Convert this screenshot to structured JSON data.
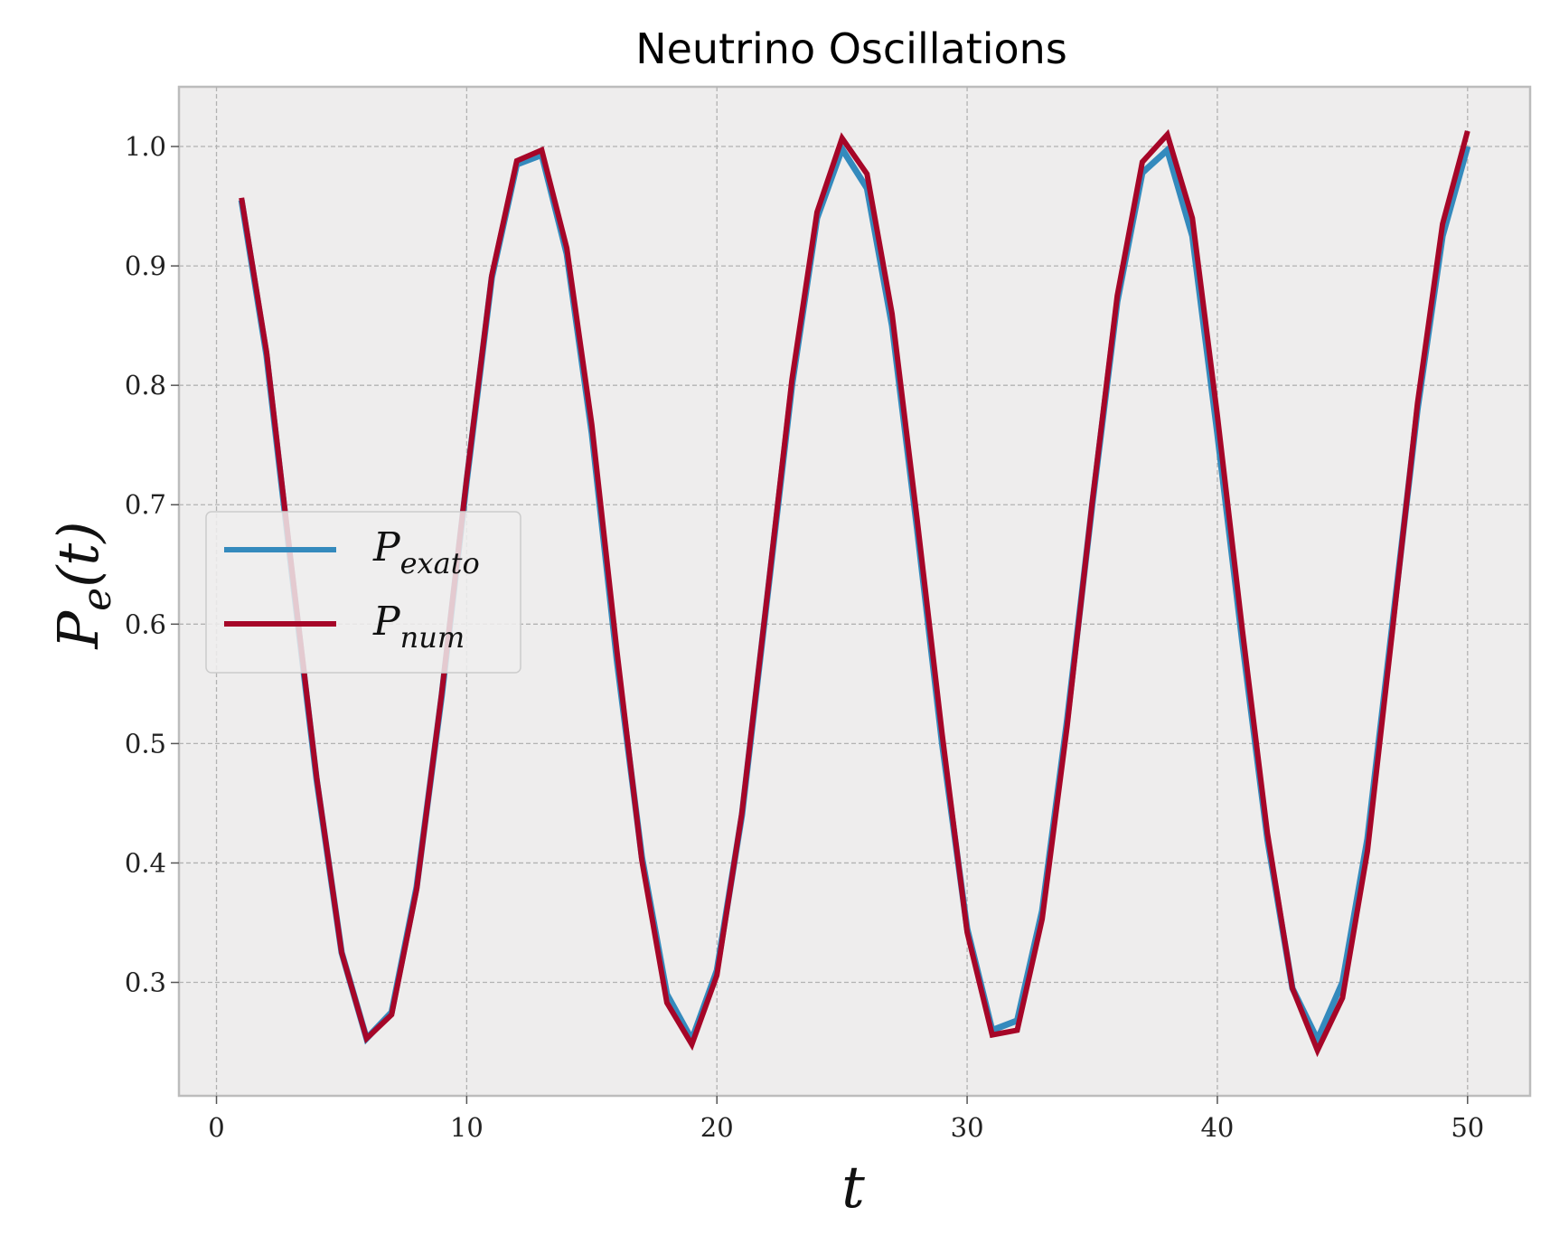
{
  "chart_data": {
    "type": "line",
    "title": "Neutrino Oscillations",
    "xlabel": "t",
    "ylabel": {
      "main": "P",
      "sub": "e",
      "rest": "(t)"
    },
    "xlim": [
      -1.5,
      52.5
    ],
    "ylim": [
      0.205,
      1.05
    ],
    "xticks": [
      0,
      10,
      20,
      30,
      40,
      50
    ],
    "yticks": [
      0.3,
      0.4,
      0.5,
      0.6,
      0.7,
      0.8,
      0.9,
      1.0
    ],
    "ytick_labels": [
      "0.3",
      "0.4",
      "0.5",
      "0.6",
      "0.7",
      "0.8",
      "0.9",
      "1.0"
    ],
    "grid": true,
    "legend_position": "center-left",
    "x": [
      1,
      2,
      3,
      4,
      5,
      6,
      7,
      8,
      9,
      10,
      11,
      12,
      13,
      14,
      15,
      16,
      17,
      18,
      19,
      20,
      21,
      22,
      23,
      24,
      25,
      26,
      27,
      28,
      29,
      30,
      31,
      32,
      33,
      34,
      35,
      36,
      37,
      38,
      39,
      40,
      41,
      42,
      43,
      44,
      45,
      46,
      47,
      48,
      49,
      50
    ],
    "series": [
      {
        "name": "exato",
        "label_main": "P",
        "label_sub": "exato",
        "color": "#348ABD",
        "values": [
          0.955,
          0.825,
          0.645,
          0.47,
          0.325,
          0.253,
          0.275,
          0.38,
          0.54,
          0.72,
          0.89,
          0.985,
          0.993,
          0.91,
          0.76,
          0.57,
          0.405,
          0.29,
          0.252,
          0.31,
          0.44,
          0.62,
          0.8,
          0.94,
          0.998,
          0.965,
          0.85,
          0.68,
          0.5,
          0.345,
          0.26,
          0.268,
          0.36,
          0.52,
          0.7,
          0.87,
          0.978,
          0.997,
          0.925,
          0.76,
          0.585,
          0.42,
          0.295,
          0.252,
          0.3,
          0.42,
          0.6,
          0.78,
          0.925,
          1.0
        ]
      },
      {
        "name": "num",
        "label_main": "P",
        "label_sub": "num",
        "color": "#A60628",
        "values": [
          0.957,
          0.828,
          0.648,
          0.472,
          0.325,
          0.253,
          0.273,
          0.378,
          0.542,
          0.722,
          0.892,
          0.988,
          0.997,
          0.915,
          0.767,
          0.578,
          0.402,
          0.283,
          0.248,
          0.306,
          0.442,
          0.622,
          0.805,
          0.945,
          1.007,
          0.977,
          0.86,
          0.688,
          0.508,
          0.342,
          0.256,
          0.26,
          0.353,
          0.515,
          0.702,
          0.875,
          0.987,
          1.01,
          0.94,
          0.775,
          0.595,
          0.425,
          0.295,
          0.243,
          0.287,
          0.41,
          0.595,
          0.785,
          0.935,
          1.013
        ]
      }
    ]
  }
}
